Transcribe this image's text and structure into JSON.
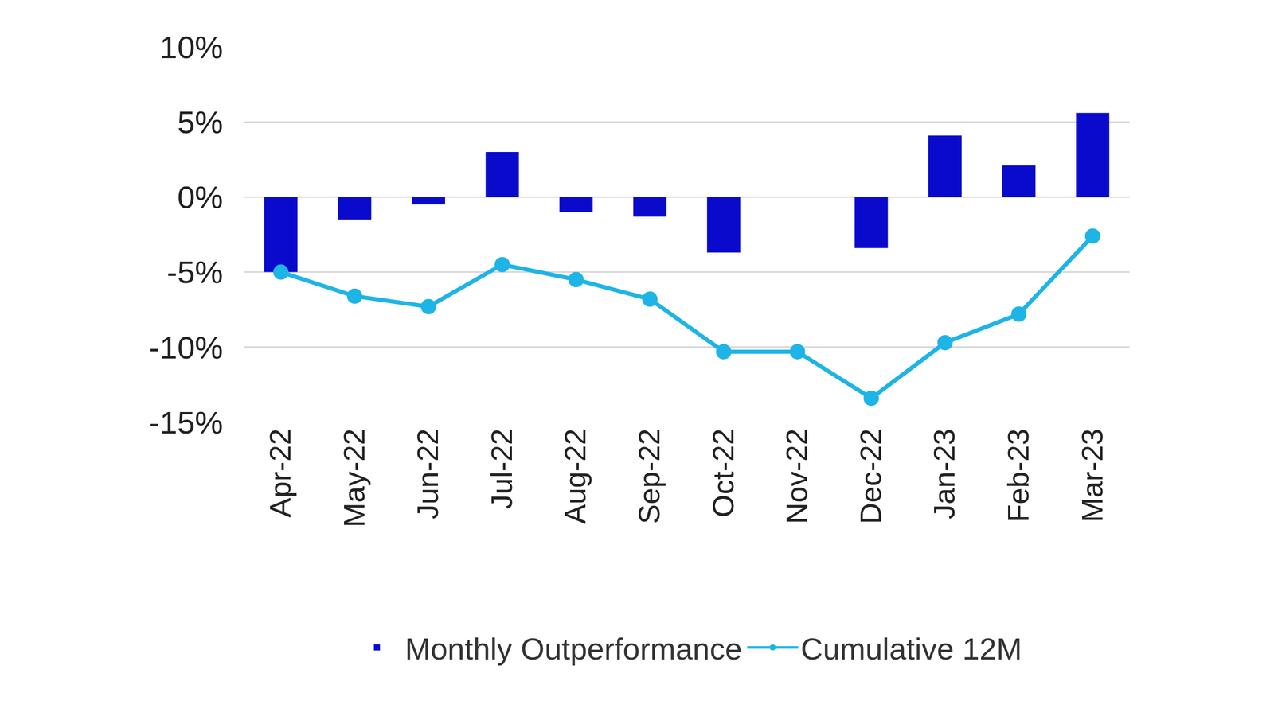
{
  "chart_data": {
    "type": "bar",
    "categories": [
      "Apr-22",
      "May-22",
      "Jun-22",
      "Jul-22",
      "Aug-22",
      "Sep-22",
      "Oct-22",
      "Nov-22",
      "Dec-22",
      "Jan-23",
      "Feb-23",
      "Mar-23"
    ],
    "series": [
      {
        "name": "Monthly Outperformance",
        "type": "bar",
        "color": "#0a0acc",
        "values": [
          -5.0,
          -1.5,
          -0.5,
          3.0,
          -1.0,
          -1.3,
          -3.7,
          0,
          -3.4,
          4.1,
          2.1,
          5.6
        ]
      },
      {
        "name": "Cumulative 12M",
        "type": "line",
        "color": "#1eb4e6",
        "marker": "circle",
        "values": [
          -5.0,
          -6.6,
          -7.3,
          -4.5,
          -5.5,
          -6.8,
          -10.3,
          -10.3,
          -13.4,
          -9.7,
          -7.8,
          -2.6
        ]
      }
    ],
    "ylim": [
      -15,
      10
    ],
    "yticks": [
      {
        "value": -15,
        "label": "-15%"
      },
      {
        "value": -10,
        "label": "-10%"
      },
      {
        "value": -5,
        "label": "-5%"
      },
      {
        "value": 0,
        "label": "0%"
      },
      {
        "value": 5,
        "label": "5%"
      },
      {
        "value": 10,
        "label": "10%"
      }
    ],
    "grid": true,
    "legend": "bottom"
  }
}
